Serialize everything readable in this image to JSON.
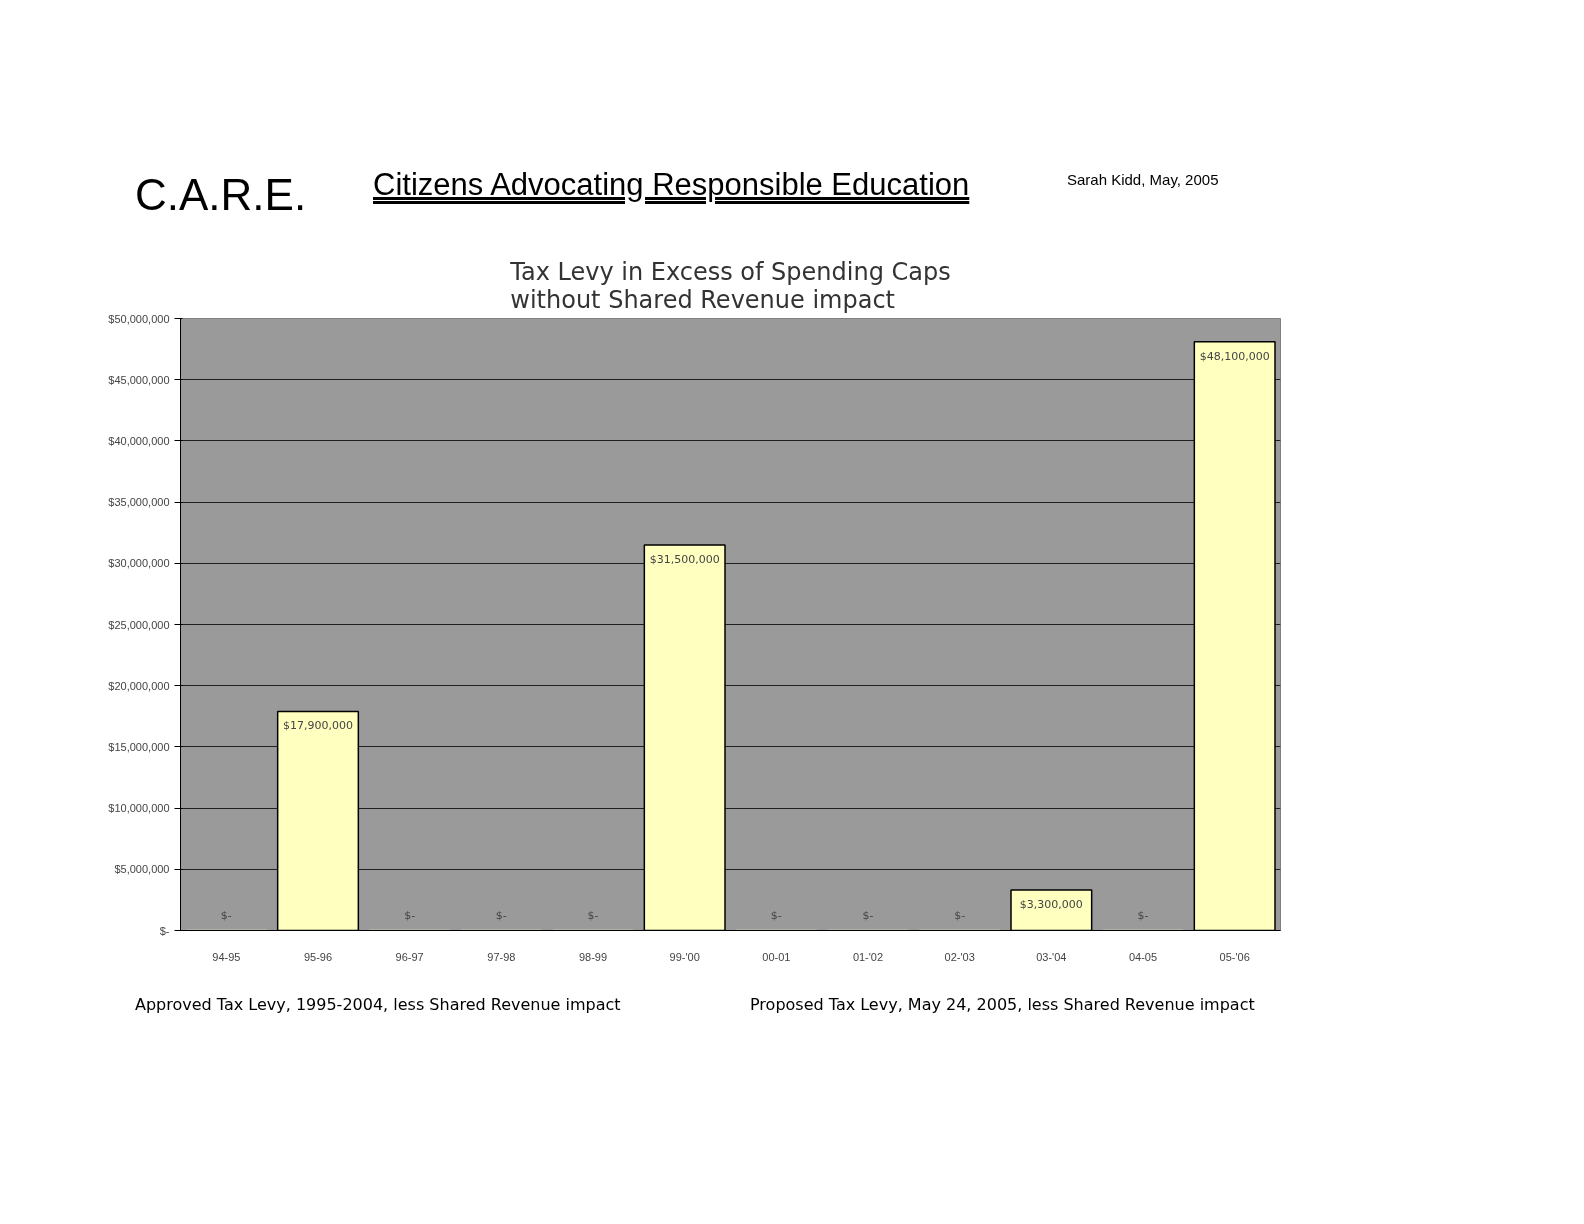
{
  "chart_data": {
    "type": "bar",
    "title": "Tax Levy in Excess of Spending Caps\nwithout Shared Revenue impact",
    "categories": [
      "94-95",
      "95-96",
      "96-97",
      "97-98",
      "98-99",
      "99-'00",
      "00-01",
      "01-'02",
      "02-'03",
      "03-'04",
      "04-05",
      "05-'06"
    ],
    "values": [
      0,
      17900000,
      0,
      0,
      0,
      31500000,
      0,
      0,
      0,
      3300000,
      0,
      48100000
    ],
    "value_labels": [
      "$-",
      "$17,900,000",
      "$-",
      "$-",
      "$-",
      "$31,500,000",
      "$-",
      "$-",
      "$-",
      "$3,300,000",
      "$-",
      "$48,100,000"
    ],
    "color": "#ffffc0",
    "ylim": [
      0,
      50000000
    ],
    "yticks": [
      {
        "value": 0,
        "label": "$-"
      },
      {
        "value": 5000000,
        "label": "$5,000,000"
      },
      {
        "value": 10000000,
        "label": "$10,000,000"
      },
      {
        "value": 15000000,
        "label": "$15,000,000"
      },
      {
        "value": 20000000,
        "label": "$20,000,000"
      },
      {
        "value": 25000000,
        "label": "$25,000,000"
      },
      {
        "value": 30000000,
        "label": "$30,000,000"
      },
      {
        "value": 35000000,
        "label": "$35,000,000"
      },
      {
        "value": 40000000,
        "label": "$40,000,000"
      },
      {
        "value": 45000000,
        "label": "$45,000,000"
      },
      {
        "value": 50000000,
        "label": "$50,000,000"
      }
    ],
    "grid": "y",
    "annotations": [
      "C.A.R.E.",
      "Citizens Advocating Responsible Education",
      "Sarah Kidd, May, 2005",
      "Approved Tax Levy, 1995-2004, less Shared Revenue impact",
      "Proposed Tax Levy, May 24, 2005, less Shared Revenue impact"
    ]
  }
}
